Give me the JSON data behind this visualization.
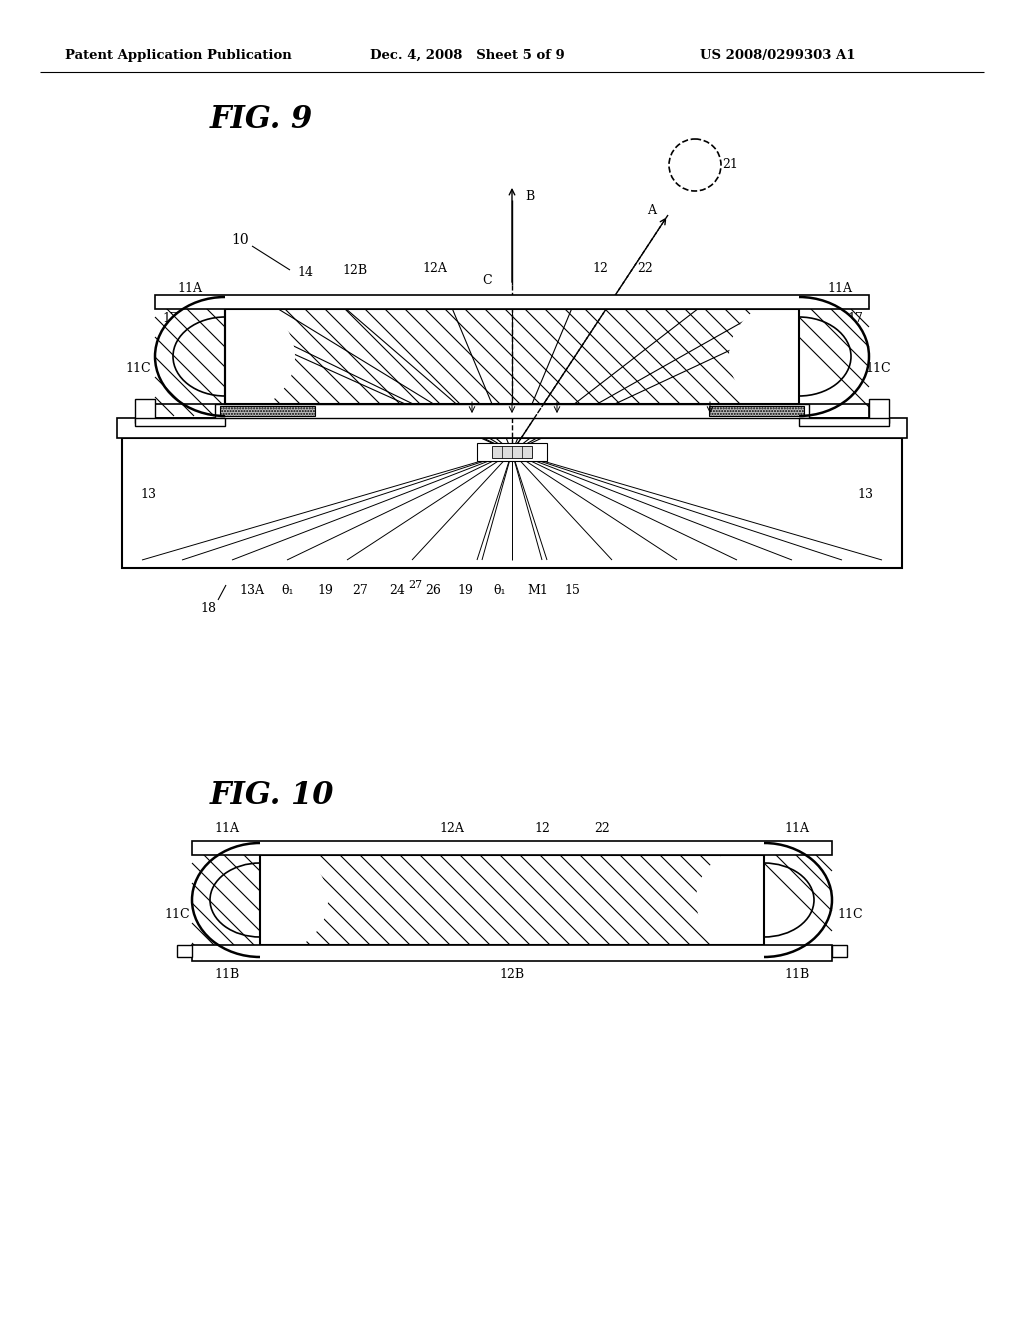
{
  "bg_color": "#ffffff",
  "header_left": "Patent Application Publication",
  "header_mid": "Dec. 4, 2008   Sheet 5 of 9",
  "header_right": "US 2008/0299303 A1",
  "fig9_title": "FIG. 9",
  "fig10_title": "FIG. 10"
}
